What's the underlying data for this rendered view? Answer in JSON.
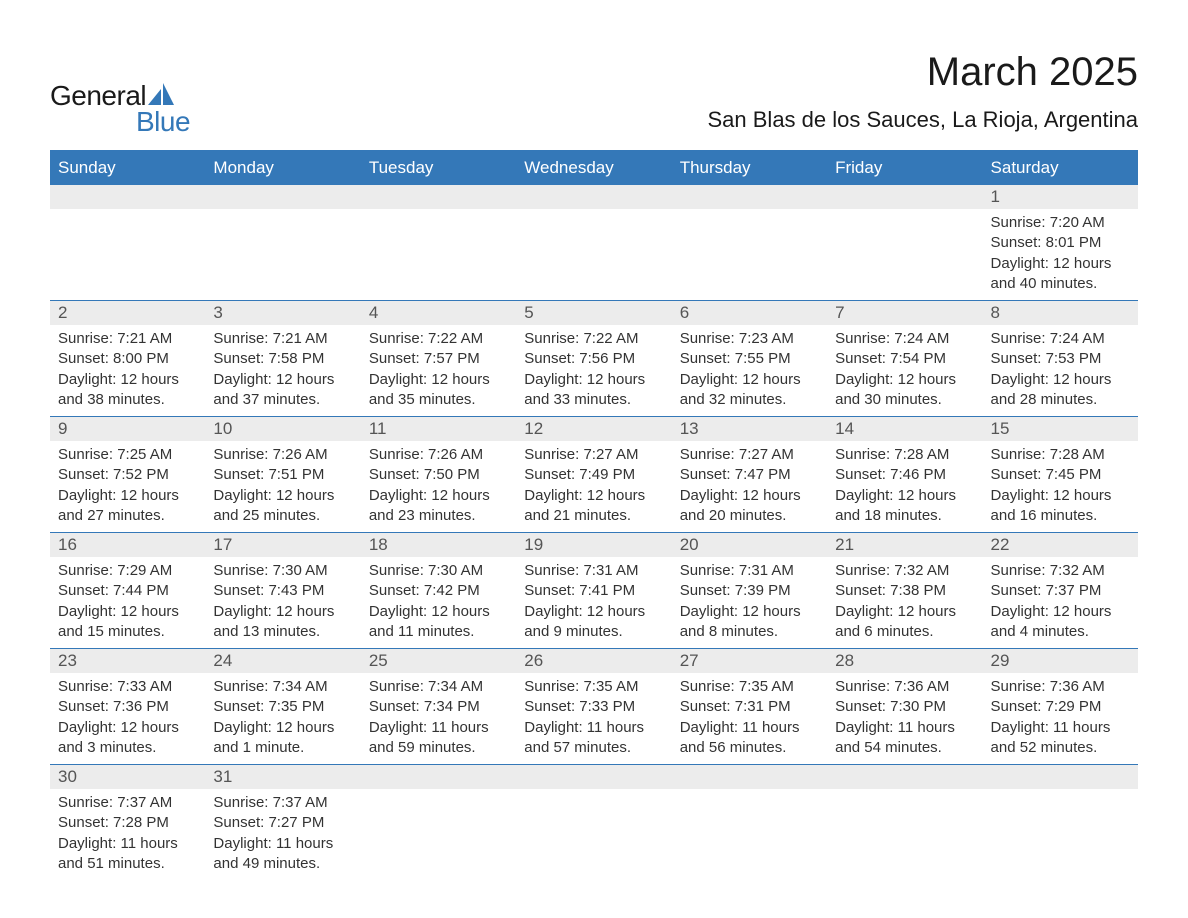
{
  "brand": {
    "name_part1": "General",
    "name_part2": "Blue",
    "color_text": "#1a1a1a",
    "color_accent": "#3478b8"
  },
  "header": {
    "title": "March 2025",
    "subtitle": "San Blas de los Sauces, La Rioja, Argentina"
  },
  "styling": {
    "header_bg": "#3478b8",
    "header_text": "#ffffff",
    "daynum_bg": "#ececec",
    "body_text": "#333333",
    "border_color": "#3478b8",
    "font_family": "Arial, Helvetica, sans-serif",
    "title_fontsize": 40,
    "subtitle_fontsize": 22,
    "dayhead_fontsize": 17,
    "cell_fontsize": 15
  },
  "calendar": {
    "day_headers": [
      "Sunday",
      "Monday",
      "Tuesday",
      "Wednesday",
      "Thursday",
      "Friday",
      "Saturday"
    ],
    "weeks": [
      [
        {
          "num": "",
          "lines": []
        },
        {
          "num": "",
          "lines": []
        },
        {
          "num": "",
          "lines": []
        },
        {
          "num": "",
          "lines": []
        },
        {
          "num": "",
          "lines": []
        },
        {
          "num": "",
          "lines": []
        },
        {
          "num": "1",
          "lines": [
            "Sunrise: 7:20 AM",
            "Sunset: 8:01 PM",
            "Daylight: 12 hours and 40 minutes."
          ]
        }
      ],
      [
        {
          "num": "2",
          "lines": [
            "Sunrise: 7:21 AM",
            "Sunset: 8:00 PM",
            "Daylight: 12 hours and 38 minutes."
          ]
        },
        {
          "num": "3",
          "lines": [
            "Sunrise: 7:21 AM",
            "Sunset: 7:58 PM",
            "Daylight: 12 hours and 37 minutes."
          ]
        },
        {
          "num": "4",
          "lines": [
            "Sunrise: 7:22 AM",
            "Sunset: 7:57 PM",
            "Daylight: 12 hours and 35 minutes."
          ]
        },
        {
          "num": "5",
          "lines": [
            "Sunrise: 7:22 AM",
            "Sunset: 7:56 PM",
            "Daylight: 12 hours and 33 minutes."
          ]
        },
        {
          "num": "6",
          "lines": [
            "Sunrise: 7:23 AM",
            "Sunset: 7:55 PM",
            "Daylight: 12 hours and 32 minutes."
          ]
        },
        {
          "num": "7",
          "lines": [
            "Sunrise: 7:24 AM",
            "Sunset: 7:54 PM",
            "Daylight: 12 hours and 30 minutes."
          ]
        },
        {
          "num": "8",
          "lines": [
            "Sunrise: 7:24 AM",
            "Sunset: 7:53 PM",
            "Daylight: 12 hours and 28 minutes."
          ]
        }
      ],
      [
        {
          "num": "9",
          "lines": [
            "Sunrise: 7:25 AM",
            "Sunset: 7:52 PM",
            "Daylight: 12 hours and 27 minutes."
          ]
        },
        {
          "num": "10",
          "lines": [
            "Sunrise: 7:26 AM",
            "Sunset: 7:51 PM",
            "Daylight: 12 hours and 25 minutes."
          ]
        },
        {
          "num": "11",
          "lines": [
            "Sunrise: 7:26 AM",
            "Sunset: 7:50 PM",
            "Daylight: 12 hours and 23 minutes."
          ]
        },
        {
          "num": "12",
          "lines": [
            "Sunrise: 7:27 AM",
            "Sunset: 7:49 PM",
            "Daylight: 12 hours and 21 minutes."
          ]
        },
        {
          "num": "13",
          "lines": [
            "Sunrise: 7:27 AM",
            "Sunset: 7:47 PM",
            "Daylight: 12 hours and 20 minutes."
          ]
        },
        {
          "num": "14",
          "lines": [
            "Sunrise: 7:28 AM",
            "Sunset: 7:46 PM",
            "Daylight: 12 hours and 18 minutes."
          ]
        },
        {
          "num": "15",
          "lines": [
            "Sunrise: 7:28 AM",
            "Sunset: 7:45 PM",
            "Daylight: 12 hours and 16 minutes."
          ]
        }
      ],
      [
        {
          "num": "16",
          "lines": [
            "Sunrise: 7:29 AM",
            "Sunset: 7:44 PM",
            "Daylight: 12 hours and 15 minutes."
          ]
        },
        {
          "num": "17",
          "lines": [
            "Sunrise: 7:30 AM",
            "Sunset: 7:43 PM",
            "Daylight: 12 hours and 13 minutes."
          ]
        },
        {
          "num": "18",
          "lines": [
            "Sunrise: 7:30 AM",
            "Sunset: 7:42 PM",
            "Daylight: 12 hours and 11 minutes."
          ]
        },
        {
          "num": "19",
          "lines": [
            "Sunrise: 7:31 AM",
            "Sunset: 7:41 PM",
            "Daylight: 12 hours and 9 minutes."
          ]
        },
        {
          "num": "20",
          "lines": [
            "Sunrise: 7:31 AM",
            "Sunset: 7:39 PM",
            "Daylight: 12 hours and 8 minutes."
          ]
        },
        {
          "num": "21",
          "lines": [
            "Sunrise: 7:32 AM",
            "Sunset: 7:38 PM",
            "Daylight: 12 hours and 6 minutes."
          ]
        },
        {
          "num": "22",
          "lines": [
            "Sunrise: 7:32 AM",
            "Sunset: 7:37 PM",
            "Daylight: 12 hours and 4 minutes."
          ]
        }
      ],
      [
        {
          "num": "23",
          "lines": [
            "Sunrise: 7:33 AM",
            "Sunset: 7:36 PM",
            "Daylight: 12 hours and 3 minutes."
          ]
        },
        {
          "num": "24",
          "lines": [
            "Sunrise: 7:34 AM",
            "Sunset: 7:35 PM",
            "Daylight: 12 hours and 1 minute."
          ]
        },
        {
          "num": "25",
          "lines": [
            "Sunrise: 7:34 AM",
            "Sunset: 7:34 PM",
            "Daylight: 11 hours and 59 minutes."
          ]
        },
        {
          "num": "26",
          "lines": [
            "Sunrise: 7:35 AM",
            "Sunset: 7:33 PM",
            "Daylight: 11 hours and 57 minutes."
          ]
        },
        {
          "num": "27",
          "lines": [
            "Sunrise: 7:35 AM",
            "Sunset: 7:31 PM",
            "Daylight: 11 hours and 56 minutes."
          ]
        },
        {
          "num": "28",
          "lines": [
            "Sunrise: 7:36 AM",
            "Sunset: 7:30 PM",
            "Daylight: 11 hours and 54 minutes."
          ]
        },
        {
          "num": "29",
          "lines": [
            "Sunrise: 7:36 AM",
            "Sunset: 7:29 PM",
            "Daylight: 11 hours and 52 minutes."
          ]
        }
      ],
      [
        {
          "num": "30",
          "lines": [
            "Sunrise: 7:37 AM",
            "Sunset: 7:28 PM",
            "Daylight: 11 hours and 51 minutes."
          ]
        },
        {
          "num": "31",
          "lines": [
            "Sunrise: 7:37 AM",
            "Sunset: 7:27 PM",
            "Daylight: 11 hours and 49 minutes."
          ]
        },
        {
          "num": "",
          "lines": []
        },
        {
          "num": "",
          "lines": []
        },
        {
          "num": "",
          "lines": []
        },
        {
          "num": "",
          "lines": []
        },
        {
          "num": "",
          "lines": []
        }
      ]
    ]
  }
}
